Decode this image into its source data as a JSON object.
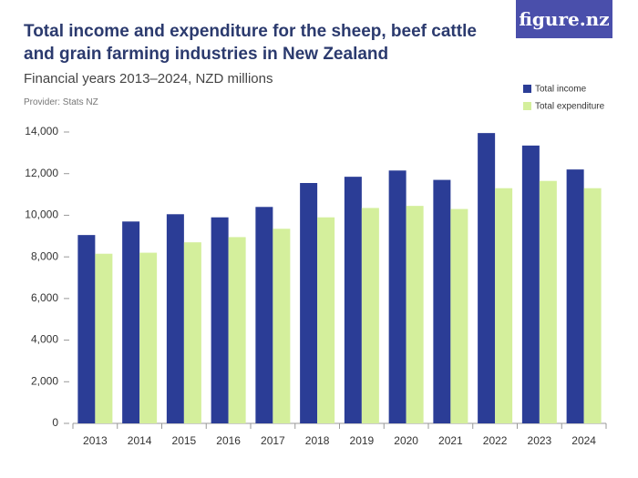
{
  "logo": "figure.nz",
  "chart_data": {
    "type": "bar",
    "title": "Total income and expenditure for the sheep, beef cattle and grain farming industries in New Zealand",
    "subtitle": "Financial years 2013–2024, NZD millions",
    "provider": "Provider: Stats NZ",
    "categories": [
      "2013",
      "2014",
      "2015",
      "2016",
      "2017",
      "2018",
      "2019",
      "2020",
      "2021",
      "2022",
      "2023",
      "2024"
    ],
    "series": [
      {
        "name": "Total income",
        "color": "#2b3d96",
        "values": [
          9050,
          9700,
          10050,
          9900,
          10400,
          11550,
          11850,
          12150,
          11700,
          13950,
          13350,
          12200
        ]
      },
      {
        "name": "Total expenditure",
        "color": "#d4ef9c",
        "values": [
          8150,
          8200,
          8700,
          8950,
          9350,
          9900,
          10350,
          10450,
          10300,
          11300,
          11650,
          11300
        ]
      }
    ],
    "ylim": [
      0,
      14000
    ],
    "yticks": [
      0,
      {
        "value": 2000,
        "label": "2,000"
      },
      {
        "value": 4000,
        "label": "4,000"
      },
      {
        "value": 6000,
        "label": "6,000"
      },
      {
        "value": 8000,
        "label": "8,000"
      },
      {
        "value": 10000,
        "label": "10,000"
      },
      {
        "value": 12000,
        "label": "12,000"
      },
      {
        "value": 14000,
        "label": "14,000"
      }
    ],
    "grid": false
  }
}
